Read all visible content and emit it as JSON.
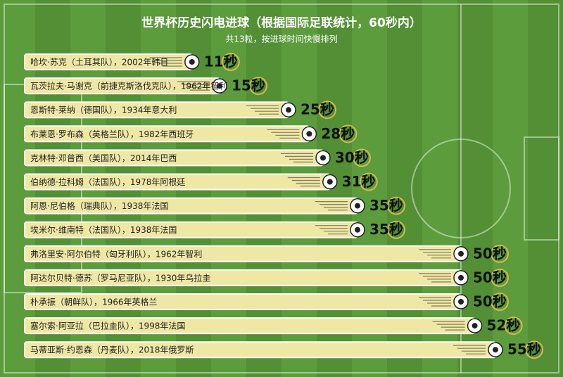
{
  "chart_data": {
    "type": "bar",
    "orientation": "horizontal",
    "title": "世界杯历史闪电进球（根据国际足联统计，60秒内）",
    "subtitle": "共13粒，按进球时间快慢排列",
    "categories": [
      "哈坎·苏克（土耳其队），2002年韩日",
      "瓦茨拉夫·马谢克（前捷克斯洛伐克队），1962年智利",
      "恩斯特·莱纳（德国队），1934年意大利",
      "布莱恩·罗布森（英格兰队），1982年西班牙",
      "克林特·邓普西（美国队），2014年巴西",
      "伯纳德·拉科姆（法国队），1978年阿根廷",
      "阿恩·尼伯格（瑞典队），1938年法国",
      "埃米尔·维南特（法国队），1938年法国",
      "弗洛里安·阿尔伯特（匈牙利队），1962年智利",
      "阿达尔贝特·德苏（罗马尼亚队），1930年乌拉圭",
      "朴承振（朝鲜队），1966年英格兰",
      "塞尔索·阿亚拉（巴拉圭队），1998年法国",
      "马蒂亚斯·约恩森（丹麦队），2018年俄罗斯"
    ],
    "values": [
      11,
      15,
      25,
      28,
      30,
      31,
      35,
      35,
      50,
      50,
      50,
      52,
      55
    ],
    "value_labels": [
      "11秒",
      "15秒",
      "25秒",
      "28秒",
      "30秒",
      "31秒",
      "35秒",
      "35秒",
      "50秒",
      "50秒",
      "50秒",
      "52秒",
      "55秒"
    ],
    "color": "#efe7a4"
  }
}
